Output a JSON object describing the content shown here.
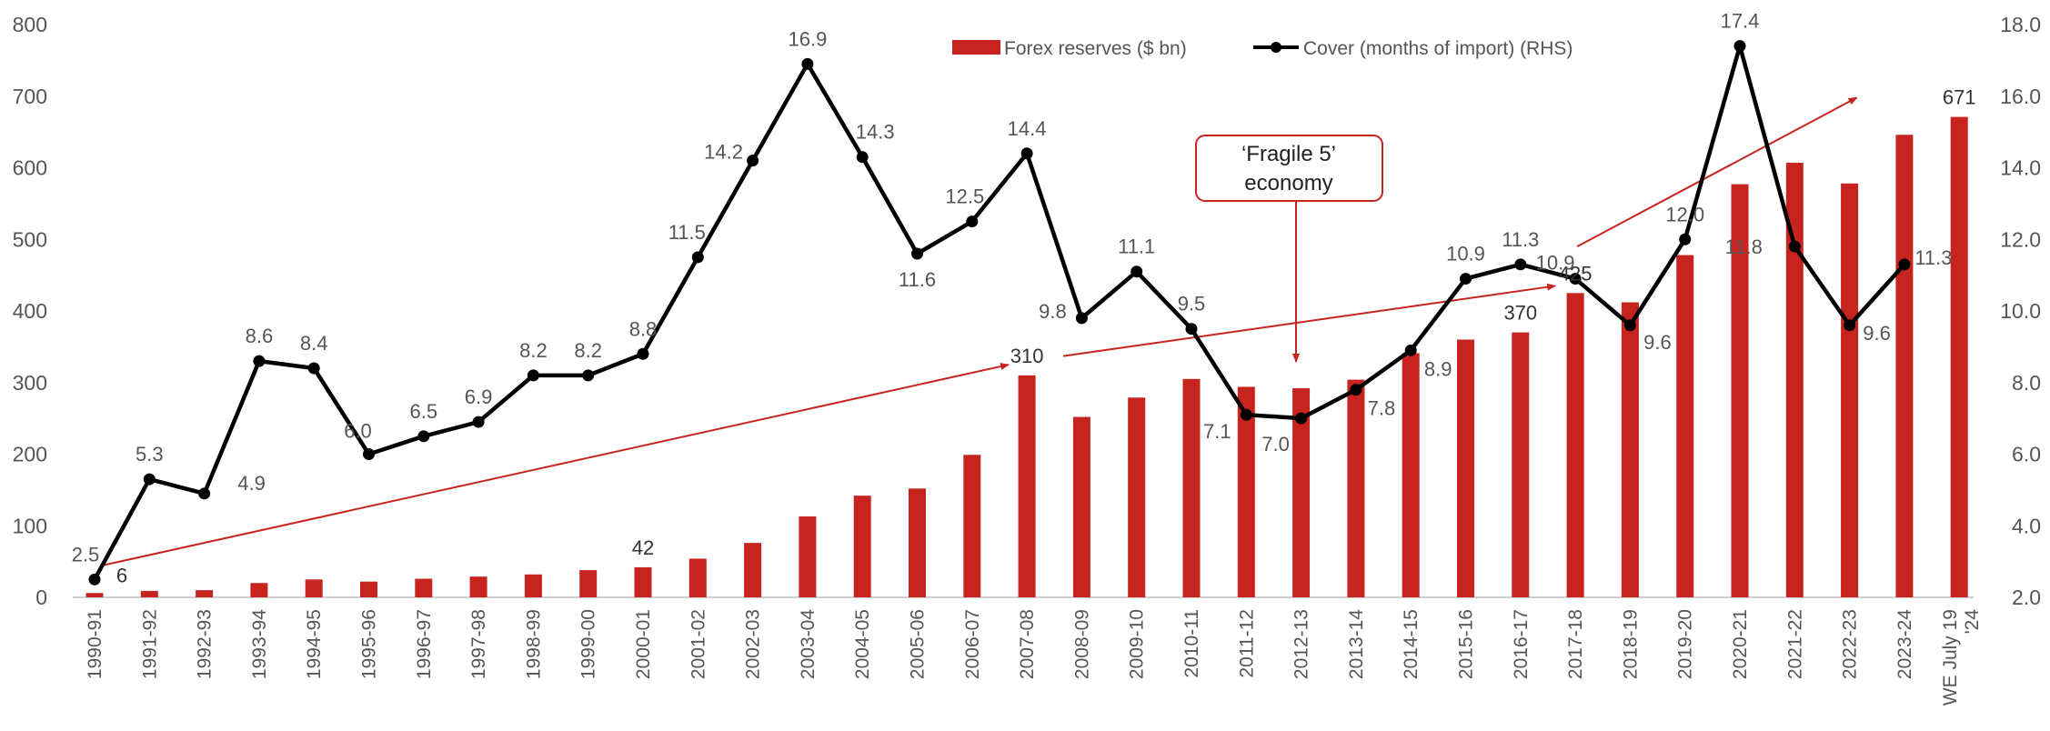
{
  "chart_data": {
    "type": "bar",
    "categories": [
      "1990-91",
      "1991-92",
      "1992-93",
      "1993-94",
      "1994-95",
      "1995-96",
      "1996-97",
      "1997-98",
      "1998-99",
      "1999-00",
      "2000-01",
      "2001-02",
      "2002-03",
      "2003-04",
      "2004-05",
      "2005-06",
      "2006-07",
      "2007-08",
      "2008-09",
      "2009-10",
      "2010-11",
      "2011-12",
      "2012-13",
      "2013-14",
      "2014-15",
      "2015-16",
      "2016-17",
      "2017-18",
      "2018-19",
      "2019-20",
      "2020-21",
      "2021-22",
      "2022-23",
      "2023-24",
      "WE July 19 '24"
    ],
    "series": [
      {
        "name": "Forex reserves ($ bn)",
        "type": "bar",
        "axis": "left",
        "color": "#c8241f",
        "values": [
          6,
          9,
          10,
          20,
          25,
          22,
          26,
          29,
          32,
          38,
          42,
          54,
          76,
          113,
          142,
          152,
          199,
          310,
          252,
          279,
          305,
          294,
          292,
          304,
          341,
          360,
          370,
          425,
          412,
          478,
          577,
          607,
          578,
          646,
          671
        ]
      },
      {
        "name": "Cover (months of import) (RHS)",
        "type": "line",
        "axis": "right",
        "color": "#000000",
        "values": [
          2.5,
          5.3,
          4.9,
          8.6,
          8.4,
          6.0,
          6.5,
          6.9,
          8.2,
          8.2,
          8.8,
          11.5,
          14.2,
          16.9,
          14.3,
          11.6,
          12.5,
          14.4,
          9.8,
          11.1,
          9.5,
          7.1,
          7.0,
          7.8,
          8.9,
          10.9,
          11.3,
          10.9,
          9.6,
          12.0,
          17.4,
          11.8,
          9.6,
          11.3,
          null
        ]
      }
    ],
    "bar_labels": [
      {
        "category": "1990-91",
        "text": "6"
      },
      {
        "category": "2000-01",
        "text": "42"
      },
      {
        "category": "2007-08",
        "text": "310"
      },
      {
        "category": "2016-17",
        "text": "370"
      },
      {
        "category": "2017-18",
        "text": "425"
      },
      {
        "category": "WE July 19 '24",
        "text": "671"
      }
    ],
    "yleft": {
      "min": 0,
      "max": 800,
      "ticks": [
        "0",
        "100",
        "200",
        "300",
        "400",
        "500",
        "600",
        "700",
        "800"
      ]
    },
    "yright": {
      "min": 2.0,
      "max": 18.0,
      "ticks": [
        "2.0",
        "4.0",
        "6.0",
        "8.0",
        "10.0",
        "12.0",
        "14.0",
        "16.0",
        "18.0"
      ]
    },
    "legend": {
      "position": "top-center",
      "bar_entry": "Forex reserves ($ bn)",
      "line_entry": "Cover (months of import) (RHS)"
    },
    "annotation": {
      "line1": "‘Fragile 5’",
      "line2": "economy",
      "points_to": "2012-13"
    },
    "trend_arrows": "three red arrows showing upward trend: 1990-91 to 2007-08, 2007-08 to 2017-18, 2017-18 to 2022-23",
    "grid": false,
    "title": ""
  }
}
